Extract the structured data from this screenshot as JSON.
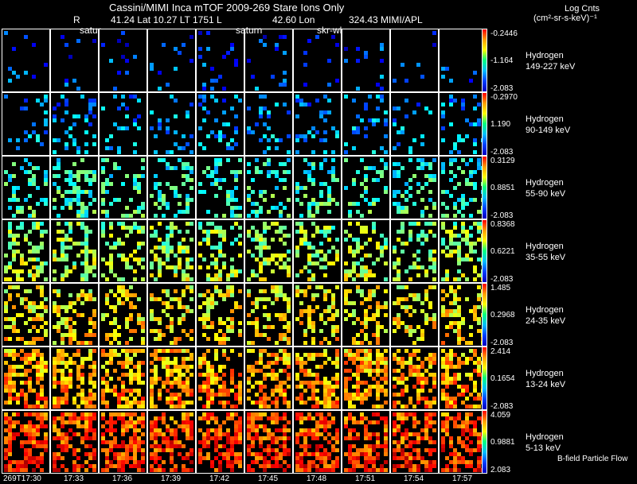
{
  "header": {
    "title": "Cassini/MIMI Inca mTOF  2009-269   Stare   Ions Only",
    "line2_r": "R",
    "line2_lat": "41.24 Lat 10.27 LT 1751 L",
    "line2_lon": "42.60 Lon",
    "line2_val": "324.43  MIMI/APL",
    "label_satur": "satur",
    "label_saturn": "saturn",
    "label_skr": "skr-wl",
    "units_line1": "Log Cnts",
    "units_line2": "(cm²-sr-s-keV)⁻¹"
  },
  "rows": [
    {
      "species": "Hydrogen",
      "energy": "149-227 keV",
      "max": "-0.2446",
      "mid": "-1.164",
      "min": "-2.083",
      "density": 0.06,
      "level": 0.15
    },
    {
      "species": "Hydrogen",
      "energy": "90-149 keV",
      "max": "-0.2970",
      "mid": "1.190",
      "min": "-2.083",
      "density": 0.18,
      "level": 0.25
    },
    {
      "species": "Hydrogen",
      "energy": "55-90 keV",
      "max": "0.3129",
      "mid": "0.8851",
      "min": "-2.083",
      "density": 0.32,
      "level": 0.38
    },
    {
      "species": "Hydrogen",
      "energy": "35-55 keV",
      "max": "0.8368",
      "mid": "0.6221",
      "min": "-2.083",
      "density": 0.4,
      "level": 0.5
    },
    {
      "species": "Hydrogen",
      "energy": "24-35 keV",
      "max": "1.485",
      "mid": "0.2968",
      "min": "-2.083",
      "density": 0.38,
      "level": 0.6
    },
    {
      "species": "Hydrogen",
      "energy": "13-24 keV",
      "max": "2.414",
      "mid": "0.1654",
      "min": "-2.083",
      "density": 0.55,
      "level": 0.68
    },
    {
      "species": "Hydrogen",
      "energy": "5-13 keV",
      "max": "4.059",
      "mid": "0.9881",
      "min": "2.083",
      "density": 0.6,
      "level": 0.78
    }
  ],
  "footer_label": "B-field Particle Flow",
  "times": [
    "269T17:30",
    "17:33",
    "17:36",
    "17:39",
    "17:42",
    "17:45",
    "17:48",
    "17:51",
    "17:54",
    "17:57"
  ],
  "colors": {
    "background": "#000000",
    "border": "#ffffff"
  }
}
